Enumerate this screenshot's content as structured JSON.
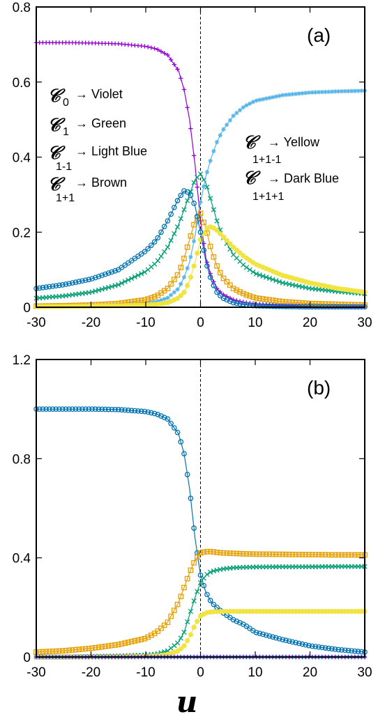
{
  "colors": {
    "violet": "#9400d3",
    "green": "#009e73",
    "light_blue": "#56b4e9",
    "brown": "#e69f00",
    "yellow": "#f0e442",
    "dark_blue": "#0072b2"
  },
  "chart_data": [
    {
      "type": "line",
      "panel_label": "(a)",
      "xlim": [
        -30,
        30
      ],
      "ylim": [
        0,
        0.8
      ],
      "x_ticks": [
        "-30",
        "-20",
        "-10",
        "0",
        "10",
        "20",
        "30"
      ],
      "y_ticks": [
        "0",
        "0.2",
        "0.4",
        "0.6",
        "0.8"
      ],
      "x_tick_values": [
        -30,
        -20,
        -10,
        0,
        10,
        20,
        30
      ],
      "y_tick_values": [
        0,
        0.2,
        0.4,
        0.6,
        0.8
      ],
      "vline_x": 0,
      "legend_left": [
        {
          "symbol": "𝒞",
          "sub": "0",
          "text": "→ Violet"
        },
        {
          "symbol": "𝒞",
          "sub": "1",
          "text": "→ Green"
        },
        {
          "symbol": "𝒞",
          "sub": "1-1",
          "text": "→ Light Blue"
        },
        {
          "symbol": "𝒞",
          "sub": "1+1",
          "text": "→ Brown"
        }
      ],
      "legend_right": [
        {
          "symbol": "𝒞",
          "sub": "1+1-1",
          "text": "→ Yellow"
        },
        {
          "symbol": "𝒞",
          "sub": "1+1+1",
          "text": "→ Dark Blue"
        }
      ],
      "x": [
        -30,
        -25,
        -20,
        -15,
        -10,
        -8,
        -6,
        -4,
        -3,
        -2,
        -1,
        0,
        1,
        2,
        3,
        4,
        6,
        8,
        10,
        15,
        20,
        25,
        30
      ],
      "series": [
        {
          "color_key": "violet",
          "marker": "plus",
          "values": [
            0.705,
            0.705,
            0.704,
            0.702,
            0.695,
            0.688,
            0.672,
            0.63,
            0.58,
            0.5,
            0.38,
            0.23,
            0.13,
            0.08,
            0.05,
            0.035,
            0.02,
            0.013,
            0.009,
            0.005,
            0.003,
            0.002,
            0.001
          ]
        },
        {
          "color_key": "green",
          "marker": "x",
          "values": [
            0.024,
            0.03,
            0.04,
            0.06,
            0.095,
            0.12,
            0.16,
            0.22,
            0.26,
            0.3,
            0.34,
            0.355,
            0.33,
            0.28,
            0.23,
            0.19,
            0.14,
            0.11,
            0.09,
            0.065,
            0.05,
            0.042,
            0.036
          ]
        },
        {
          "color_key": "light_blue",
          "marker": "star",
          "values": [
            0.002,
            0.003,
            0.004,
            0.006,
            0.01,
            0.015,
            0.025,
            0.05,
            0.08,
            0.12,
            0.19,
            0.28,
            0.35,
            0.4,
            0.44,
            0.47,
            0.51,
            0.535,
            0.55,
            0.565,
            0.572,
            0.575,
            0.577
          ]
        },
        {
          "color_key": "brown",
          "marker": "square",
          "values": [
            0.003,
            0.004,
            0.006,
            0.01,
            0.02,
            0.03,
            0.05,
            0.09,
            0.13,
            0.18,
            0.23,
            0.25,
            0.21,
            0.15,
            0.11,
            0.08,
            0.05,
            0.035,
            0.025,
            0.015,
            0.01,
            0.008,
            0.006
          ]
        },
        {
          "color_key": "yellow",
          "marker": "dot",
          "values": [
            0.002,
            0.002,
            0.003,
            0.004,
            0.006,
            0.008,
            0.012,
            0.025,
            0.04,
            0.07,
            0.12,
            0.18,
            0.21,
            0.215,
            0.205,
            0.19,
            0.16,
            0.135,
            0.115,
            0.085,
            0.065,
            0.05,
            0.04
          ]
        },
        {
          "color_key": "dark_blue",
          "marker": "circle",
          "values": [
            0.05,
            0.06,
            0.075,
            0.1,
            0.15,
            0.18,
            0.23,
            0.29,
            0.31,
            0.305,
            0.27,
            0.2,
            0.12,
            0.07,
            0.04,
            0.025,
            0.012,
            0.007,
            0.004,
            0.002,
            0.001,
            0.001,
            0.001
          ]
        }
      ]
    },
    {
      "type": "line",
      "panel_label": "(b)",
      "xlim": [
        -30,
        30
      ],
      "ylim": [
        0,
        1.2
      ],
      "x_ticks": [
        "-30",
        "-20",
        "-10",
        "0",
        "10",
        "20",
        "30"
      ],
      "y_ticks": [
        "0",
        "0.4",
        "0.8",
        "1.2"
      ],
      "x_tick_values": [
        -30,
        -20,
        -10,
        0,
        10,
        20,
        30
      ],
      "y_tick_values": [
        0,
        0.4,
        0.8,
        1.2
      ],
      "vline_x": 0,
      "xlabel": "u",
      "x": [
        -30,
        -25,
        -20,
        -15,
        -10,
        -8,
        -6,
        -4,
        -3,
        -2,
        -1,
        0,
        1,
        2,
        3,
        4,
        6,
        8,
        10,
        15,
        20,
        25,
        30
      ],
      "series": [
        {
          "color_key": "dark_blue",
          "marker": "circle",
          "values": [
            1.0,
            1.0,
            1.0,
            0.998,
            0.99,
            0.98,
            0.96,
            0.9,
            0.82,
            0.68,
            0.48,
            0.33,
            0.26,
            0.22,
            0.2,
            0.18,
            0.15,
            0.13,
            0.1,
            0.07,
            0.045,
            0.03,
            0.02
          ]
        },
        {
          "color_key": "brown",
          "marker": "square",
          "values": [
            0.02,
            0.025,
            0.035,
            0.05,
            0.075,
            0.1,
            0.14,
            0.22,
            0.28,
            0.34,
            0.39,
            0.42,
            0.425,
            0.425,
            0.422,
            0.42,
            0.418,
            0.416,
            0.415,
            0.414,
            0.413,
            0.412,
            0.412
          ]
        },
        {
          "color_key": "green",
          "marker": "x",
          "values": [
            0.0,
            0.0,
            0.002,
            0.004,
            0.008,
            0.012,
            0.025,
            0.06,
            0.1,
            0.17,
            0.24,
            0.3,
            0.33,
            0.345,
            0.35,
            0.355,
            0.36,
            0.362,
            0.363,
            0.364,
            0.364,
            0.365,
            0.365
          ]
        },
        {
          "color_key": "yellow",
          "marker": "dot",
          "values": [
            0.0,
            0.0,
            0.0,
            0.001,
            0.003,
            0.005,
            0.01,
            0.025,
            0.045,
            0.08,
            0.13,
            0.165,
            0.178,
            0.182,
            0.183,
            0.184,
            0.184,
            0.184,
            0.184,
            0.184,
            0.184,
            0.184,
            0.184
          ]
        },
        {
          "color_key": "light_blue",
          "marker": "star",
          "values": [
            0.0,
            0.0,
            0.0,
            0.0,
            0.0,
            0.0,
            0.0,
            0.0,
            0.0,
            0.0,
            0.0,
            0.0,
            0.0,
            0.0,
            0.0,
            0.0,
            0.0,
            0.0,
            0.0,
            0.0,
            0.0,
            0.0,
            0.0
          ]
        },
        {
          "color_key": "violet",
          "marker": "plus",
          "values": [
            0.0,
            0.0,
            0.0,
            0.0,
            0.0,
            0.0,
            0.0,
            0.0,
            0.0,
            0.0,
            0.0,
            0.0,
            0.0,
            0.0,
            0.0,
            0.0,
            0.0,
            0.0,
            0.0,
            0.0,
            0.0,
            0.0,
            0.0
          ]
        }
      ]
    }
  ]
}
